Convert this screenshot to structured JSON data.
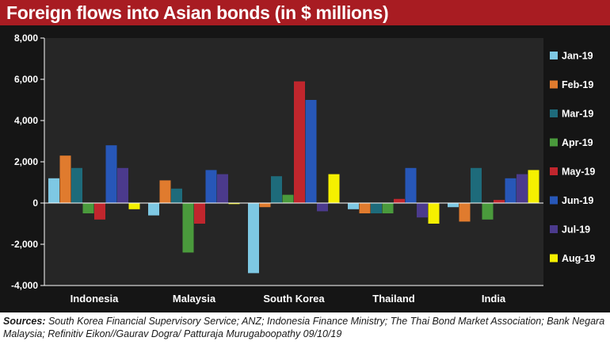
{
  "title": "Foreign flows into Asian bonds (in $ millions)",
  "source": {
    "label": "Sources:",
    "text": " South Korea Financial Supervisory Service; ANZ; Indonesia Finance Ministry; The Thai Bond Market Association; Bank Negara Malaysia; Refinitiv Eikon//Gaurav Dogra/ Patturaja Murugaboopathy 09/10/19"
  },
  "colors": {
    "title_bar": "#a81c22",
    "background": "#151515",
    "plot_area": "#262626",
    "grid": "#3a3a3a"
  },
  "chart_data": {
    "type": "bar",
    "title": "Foreign flows into Asian bonds (in $ millions)",
    "xlabel": "",
    "ylabel": "",
    "ylim": [
      -4000,
      8000
    ],
    "yticks": [
      -4000,
      -2000,
      0,
      2000,
      4000,
      6000,
      8000
    ],
    "ytick_labels": [
      "-4,000",
      "-2,000",
      "0",
      "2,000",
      "4,000",
      "6,000",
      "8,000"
    ],
    "grid": false,
    "legend_position": "right",
    "categories": [
      "Indonesia",
      "Malaysia",
      "South Korea",
      "Thailand",
      "India"
    ],
    "series": [
      {
        "name": "Jan-19",
        "color": "#7ec8e3",
        "values": [
          1200,
          -600,
          -3400,
          -300,
          -200
        ]
      },
      {
        "name": "Feb-19",
        "color": "#e07b2e",
        "values": [
          2300,
          1100,
          -200,
          -500,
          -900
        ]
      },
      {
        "name": "Mar-19",
        "color": "#1e6b7b",
        "values": [
          1700,
          700,
          1300,
          -500,
          1700
        ]
      },
      {
        "name": "Apr-19",
        "color": "#4a9a3c",
        "values": [
          -500,
          -2400,
          400,
          -500,
          -800
        ]
      },
      {
        "name": "May-19",
        "color": "#c0262d",
        "values": [
          -800,
          -1000,
          5900,
          200,
          150
        ]
      },
      {
        "name": "Jun-19",
        "color": "#2757b8",
        "values": [
          2800,
          1600,
          5000,
          1700,
          1200
        ]
      },
      {
        "name": "Jul-19",
        "color": "#4b3a8c",
        "values": [
          1700,
          1400,
          -400,
          -700,
          1400
        ]
      },
      {
        "name": "Aug-19",
        "color": "#f5f000",
        "values": [
          -300,
          -50,
          1400,
          -1000,
          1600
        ]
      }
    ]
  }
}
